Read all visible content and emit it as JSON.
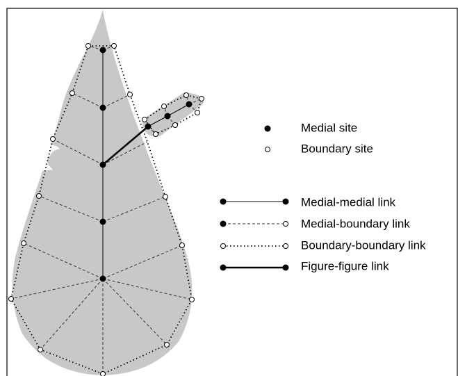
{
  "legend": {
    "items": [
      "Medial site",
      "Boundary site",
      "Medial-medial link",
      "Medial-boundary link",
      "Boundary-boundary link",
      "Figure-figure link"
    ]
  }
}
